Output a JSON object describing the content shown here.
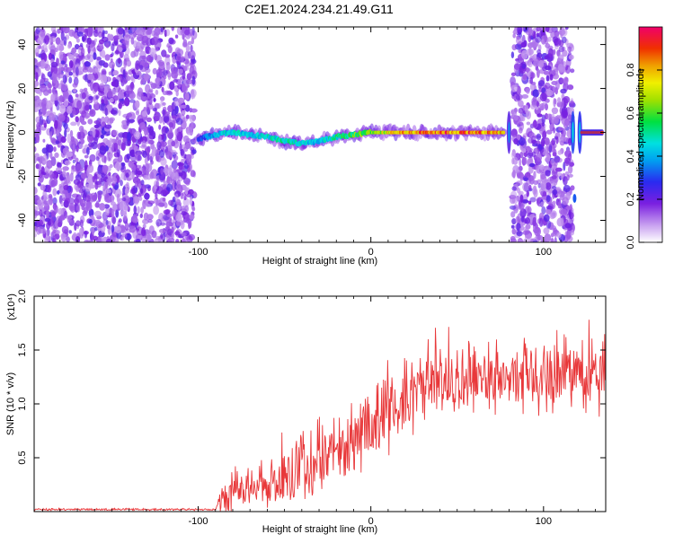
{
  "chart_data": [
    {
      "type": "heatmap",
      "title": "C2E1.2024.234.21.49.G11",
      "xlabel": "Height of straight line (km)",
      "ylabel": "Frequency (Hz)",
      "xlim": [
        -195,
        136
      ],
      "ylim": [
        -50,
        48
      ],
      "x_ticks": [
        -100,
        0,
        100
      ],
      "x_tick_labels": [
        "-100",
        "0",
        "100"
      ],
      "y_ticks": [
        -40,
        -20,
        0,
        20,
        40
      ],
      "y_tick_labels": [
        "-40",
        "-20",
        "0",
        "20",
        "40"
      ],
      "colorbar": {
        "label": "Normalized spectral amplitude",
        "range": [
          0,
          1
        ],
        "ticks": [
          0.0,
          0.2,
          0.4,
          0.6,
          0.8
        ],
        "tick_labels": [
          "0.0",
          "0.2",
          "0.4",
          "0.6",
          "0.8"
        ]
      },
      "ridge": {
        "x": [
          -100,
          -90,
          -80,
          -70,
          -60,
          -50,
          -40,
          -30,
          -20,
          -10,
          0,
          10,
          20,
          40,
          60,
          76
        ],
        "frequency": [
          -3,
          -1,
          0,
          -1,
          -2,
          -4,
          -5,
          -4,
          -2,
          -1,
          0,
          0,
          0,
          0,
          0,
          0
        ],
        "amplitude": [
          0.3,
          0.45,
          0.5,
          0.45,
          0.5,
          0.55,
          0.5,
          0.45,
          0.55,
          0.65,
          0.7,
          0.8,
          0.9,
          0.95,
          0.95,
          0.9
        ]
      },
      "right_ridge": {
        "x": [
          122,
          134
        ],
        "frequency": [
          0,
          0
        ],
        "amplitude": [
          0.9,
          0.9
        ]
      },
      "noise_regions": [
        [
          -195,
          -102
        ],
        [
          82,
          117
        ]
      ]
    },
    {
      "type": "line",
      "xlabel": "Height of straight line (km)",
      "ylabel": "SNR (10 * v/v)",
      "y_scale_label": "(x10⁴)",
      "xlim": [
        -195,
        136
      ],
      "ylim": [
        0,
        2.0
      ],
      "x_ticks": [
        -100,
        0,
        100
      ],
      "x_tick_labels": [
        "-100",
        "0",
        "100"
      ],
      "y_ticks": [
        0.5,
        1.0,
        1.5,
        2.0
      ],
      "y_tick_labels": [
        "0.5",
        "1.0",
        "1.5",
        "2.0"
      ],
      "color": "#e8383a",
      "trend": {
        "x": [
          -195,
          -90,
          -88,
          -80,
          -70,
          -60,
          -50,
          -40,
          -30,
          -20,
          -10,
          0,
          10,
          20,
          30,
          40,
          50,
          60,
          70,
          80,
          90,
          100,
          110,
          120,
          136
        ],
        "baseline": [
          0.02,
          0.02,
          0.08,
          0.2,
          0.22,
          0.25,
          0.3,
          0.4,
          0.5,
          0.55,
          0.65,
          0.8,
          0.95,
          1.05,
          1.15,
          1.2,
          1.2,
          1.25,
          1.25,
          1.25,
          1.25,
          1.25,
          1.25,
          1.25,
          1.3
        ],
        "noise_amplitude": [
          0.01,
          0.01,
          0.1,
          0.2,
          0.2,
          0.22,
          0.3,
          0.35,
          0.38,
          0.38,
          0.4,
          0.42,
          0.4,
          0.38,
          0.38,
          0.35,
          0.35,
          0.35,
          0.35,
          0.35,
          0.35,
          0.35,
          0.35,
          0.35,
          0.35
        ]
      }
    }
  ]
}
